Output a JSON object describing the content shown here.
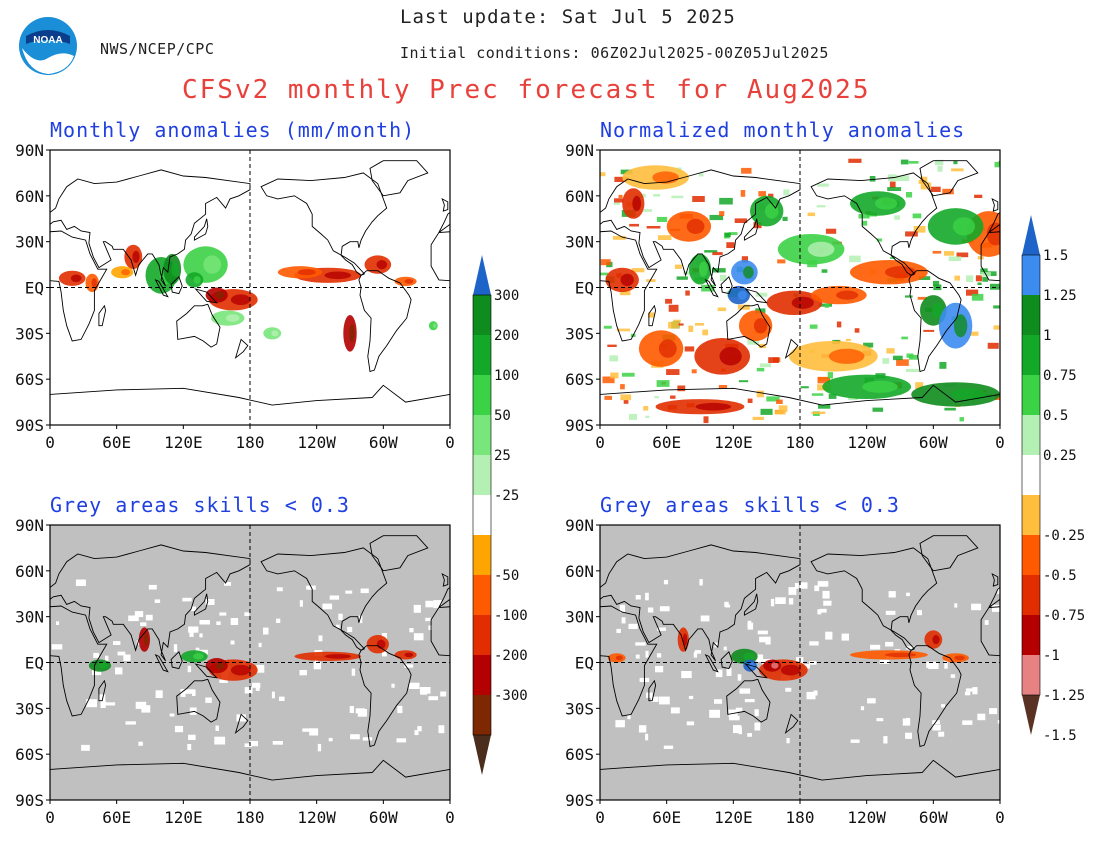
{
  "header": {
    "last_update": "Last update: Sat Jul 5 2025",
    "initial_conditions": "Initial conditions: 06Z02Jul2025-00Z05Jul2025",
    "org": "NWS/NCEP/CPC",
    "logo_text": "NOAA",
    "main_title": "CFSv2 monthly Prec forecast for Aug2025"
  },
  "panels": [
    {
      "id": "tl",
      "title": "Monthly anomalies (mm/month)",
      "grey_mask": false
    },
    {
      "id": "tr",
      "title": "Normalized monthly anomalies",
      "grey_mask": false
    },
    {
      "id": "bl",
      "title": "Grey areas skills < 0.3",
      "grey_mask": true
    },
    {
      "id": "br",
      "title": "Grey areas skills < 0.3",
      "grey_mask": true
    }
  ],
  "axes": {
    "lat_labels": [
      "90N",
      "60N",
      "30N",
      "EQ",
      "30S",
      "60S",
      "90S"
    ],
    "lon_labels": [
      "0",
      "60E",
      "120E",
      "180",
      "120W",
      "60W",
      "0"
    ]
  },
  "colorbar_mm": {
    "labels": [
      "300",
      "200",
      "100",
      "50",
      "25",
      "-25",
      "-50",
      "-100",
      "-200",
      "-300"
    ],
    "colors": [
      "#1e64c8",
      "#0f8c1e",
      "#14a828",
      "#3cd246",
      "#78e67a",
      "#b4f0b4",
      "#ffffff",
      "#ffa500",
      "#ff5a00",
      "#e12d00",
      "#b40000",
      "#7d2800",
      "#4b2d1e"
    ]
  },
  "colorbar_norm": {
    "labels": [
      "1.5",
      "1.25",
      "1",
      "0.75",
      "0.5",
      "0.25",
      "-0.25",
      "-0.5",
      "-0.75",
      "-1",
      "-1.25",
      "-1.5"
    ],
    "colors": [
      "#1e64c8",
      "#3c8cf0",
      "#0f8c1e",
      "#14a828",
      "#3cd246",
      "#b4f0b4",
      "#ffffff",
      "#ffbe3c",
      "#ff5a00",
      "#e12d00",
      "#b40000",
      "#e68282",
      "#5a3223"
    ]
  },
  "colors": {
    "grey_mask": "#c0c0c0",
    "title_red": "#e8413c",
    "title_blue": "#1f3fe0"
  }
}
